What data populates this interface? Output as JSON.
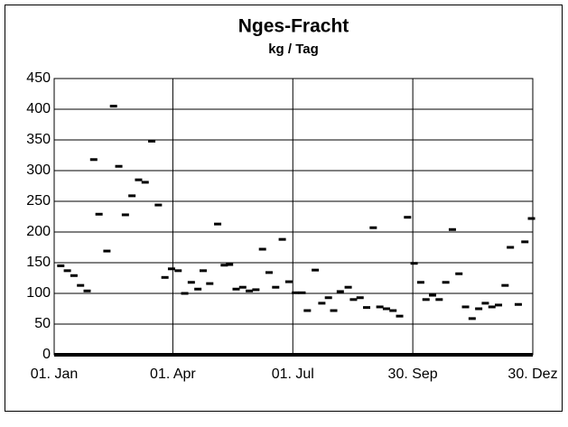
{
  "chart_data": {
    "type": "scatter",
    "title": "Nges-Fracht",
    "subtitle": "kg / Tag",
    "x": [
      5,
      10,
      15,
      20,
      25,
      30,
      34,
      40,
      45,
      49,
      54,
      59,
      64,
      69,
      74,
      79,
      84,
      89,
      94,
      99,
      104,
      109,
      113,
      118,
      124,
      129,
      133,
      138,
      143,
      148,
      153,
      158,
      163,
      168,
      173,
      178,
      183,
      188,
      192,
      198,
      203,
      208,
      212,
      217,
      223,
      227,
      232,
      237,
      242,
      247,
      252,
      257,
      262,
      268,
      273,
      278,
      282,
      287,
      292,
      297,
      302,
      307,
      312,
      317,
      322,
      327,
      332,
      337,
      342,
      346,
      352,
      357,
      362
    ],
    "values": [
      145,
      137,
      129,
      113,
      104,
      318,
      229,
      169,
      405,
      307,
      228,
      259,
      285,
      281,
      348,
      244,
      126,
      140,
      137,
      100,
      118,
      107,
      137,
      116,
      213,
      146,
      147,
      107,
      110,
      104,
      106,
      172,
      134,
      110,
      188,
      119,
      101,
      101,
      72,
      138,
      84,
      93,
      72,
      103,
      110,
      90,
      93,
      77,
      207,
      78,
      75,
      72,
      63,
      224,
      149,
      118,
      90,
      97,
      90,
      118,
      204,
      132,
      78,
      59,
      75,
      84,
      78,
      81,
      113,
      175,
      82,
      184,
      222
    ],
    "color": "#000000",
    "xlim": [
      0,
      363
    ],
    "xticks": [
      {
        "value": 0,
        "label": "01. Jan"
      },
      {
        "value": 90,
        "label": "01. Apr"
      },
      {
        "value": 181,
        "label": "01. Jul"
      },
      {
        "value": 272,
        "label": "30. Sep"
      },
      {
        "value": 363,
        "label": "30. Dez"
      }
    ],
    "ylim": [
      0,
      450
    ],
    "yticks": [
      0,
      50,
      100,
      150,
      200,
      250,
      300,
      350,
      400,
      450
    ],
    "grid": true
  }
}
